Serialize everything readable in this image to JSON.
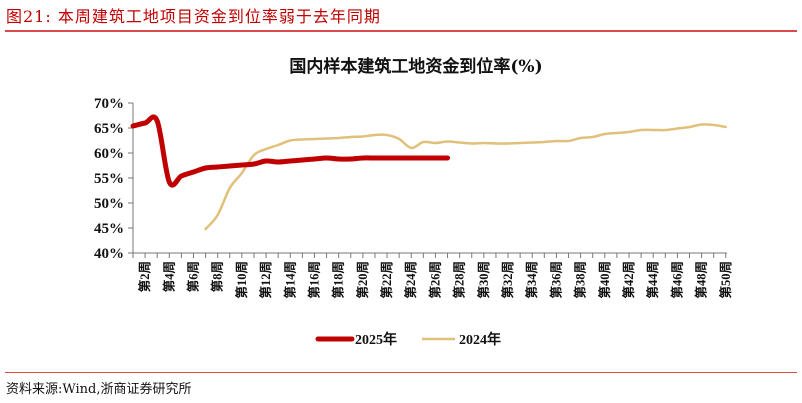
{
  "figure": {
    "caption": "图21:  本周建筑工地项目资金到位率弱于去年同期",
    "source": "资料来源:Wind,浙商证券研究所"
  },
  "colors": {
    "caption": "#c00000",
    "rule": "#d94a4a",
    "series_2025": "#c00000",
    "series_2024": "#e0c07a"
  },
  "chart_data": {
    "type": "line",
    "title": "国内样本建筑工地资金到位率(%)",
    "xlabel": "",
    "ylabel": "",
    "ylim": [
      40,
      70
    ],
    "yticks": [
      "70%",
      "65%",
      "60%",
      "55%",
      "50%",
      "45%",
      "40%"
    ],
    "grid": false,
    "legend_position": "bottom",
    "x": [
      1,
      2,
      3,
      4,
      5,
      6,
      7,
      8,
      9,
      10,
      11,
      12,
      13,
      14,
      15,
      16,
      17,
      18,
      19,
      20,
      21,
      22,
      23,
      24,
      25,
      26,
      27,
      28,
      29,
      30,
      31,
      32,
      33,
      34,
      35,
      36,
      37,
      38,
      39,
      40,
      41,
      42,
      43,
      44,
      45,
      46,
      47,
      48,
      49,
      50
    ],
    "xtick_labels": [
      "第2周",
      "第4周",
      "第6周",
      "第8周",
      "第10周",
      "第12周",
      "第14周",
      "第16周",
      "第18周",
      "第20周",
      "第22周",
      "第24周",
      "第26周",
      "第28周",
      "第30周",
      "第32周",
      "第34周",
      "第36周",
      "第38周",
      "第40周",
      "第42周",
      "第44周",
      "第46周",
      "第48周",
      "第50周"
    ],
    "series": [
      {
        "name": "2025年",
        "start_week": 1,
        "values": [
          65.4,
          66.0,
          66.4,
          54.2,
          55.4,
          56.2,
          57.0,
          57.2,
          57.4,
          57.6,
          57.8,
          58.4,
          58.2,
          58.4,
          58.6,
          58.8,
          59.0,
          58.8,
          58.8,
          59.0,
          59.0,
          59.0,
          59.0,
          59.0,
          59.0,
          59.0,
          59.0
        ]
      },
      {
        "name": "2024年",
        "start_week": 7,
        "values": [
          44.8,
          47.6,
          53.0,
          56.0,
          59.6,
          60.8,
          61.6,
          62.5,
          62.7,
          62.8,
          62.9,
          63.0,
          63.2,
          63.3,
          63.6,
          63.6,
          62.8,
          61.0,
          62.2,
          62.0,
          62.3,
          62.1,
          61.9,
          62.0,
          61.9,
          61.9,
          62.0,
          62.1,
          62.2,
          62.4,
          62.4,
          63.0,
          63.2,
          63.8,
          64.0,
          64.2,
          64.6,
          64.6,
          64.6,
          64.9,
          65.2,
          65.7,
          65.6,
          65.2
        ]
      }
    ]
  }
}
